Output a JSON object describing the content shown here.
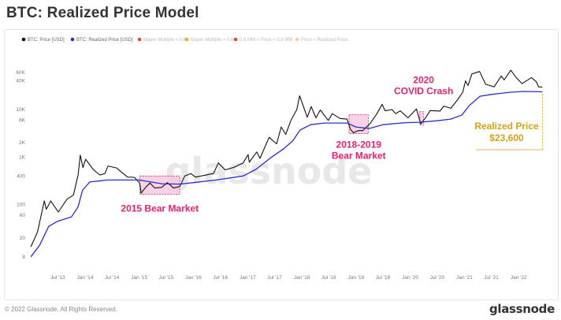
{
  "page": {
    "title": "BTC: Realized Price Model",
    "copyright": "© 2022 Glassnode. All Rights Reserved.",
    "brand": "glassnode",
    "watermark": "glassnode"
  },
  "colors": {
    "price": "#111111",
    "realized": "#2b2bd6",
    "annotation": "#e8206e",
    "realized_label": "#d6a21a",
    "highlight_fill": "#f7c3dc",
    "highlight_stroke": "#e8206e"
  },
  "chart_data": {
    "type": "line",
    "title": "BTC: Realized Price Model",
    "y_scale": "log",
    "y_ticks": [
      {
        "value": 8,
        "label": "8"
      },
      {
        "value": 20,
        "label": "20"
      },
      {
        "value": 60,
        "label": "60"
      },
      {
        "value": 100,
        "label": "100"
      },
      {
        "value": 400,
        "label": "400"
      },
      {
        "value": 1000,
        "label": "1K"
      },
      {
        "value": 2000,
        "label": "2K"
      },
      {
        "value": 6000,
        "label": "6K"
      },
      {
        "value": 10000,
        "label": "10K"
      },
      {
        "value": 40000,
        "label": "40K"
      },
      {
        "value": 60000,
        "label": "60K"
      }
    ],
    "ylim": [
      4,
      150000
    ],
    "xlim": [
      "2012-12-15",
      "2022-07-31"
    ],
    "x_ticks": [
      {
        "date": "2013-07-01",
        "label": "Jul '13"
      },
      {
        "date": "2014-01-01",
        "label": "Jan '14"
      },
      {
        "date": "2014-07-01",
        "label": "Jul '14"
      },
      {
        "date": "2015-01-01",
        "label": "Jan '15"
      },
      {
        "date": "2015-07-01",
        "label": "Jul '15"
      },
      {
        "date": "2016-01-01",
        "label": "Jan '16"
      },
      {
        "date": "2016-07-01",
        "label": "Jul '16"
      },
      {
        "date": "2017-01-01",
        "label": "Jan '17"
      },
      {
        "date": "2017-07-01",
        "label": "Jul '17"
      },
      {
        "date": "2018-01-01",
        "label": "Jan '18"
      },
      {
        "date": "2018-07-01",
        "label": "Jul '18"
      },
      {
        "date": "2019-01-01",
        "label": "Jan '19"
      },
      {
        "date": "2019-07-01",
        "label": "Jul '19"
      },
      {
        "date": "2020-01-01",
        "label": "Jan '20"
      },
      {
        "date": "2020-07-01",
        "label": "Jul '20"
      },
      {
        "date": "2021-01-01",
        "label": "Jan '21"
      },
      {
        "date": "2021-07-01",
        "label": "Jul '21"
      },
      {
        "date": "2022-01-01",
        "label": "Jan '22"
      }
    ],
    "legend": [
      {
        "label": "BTC: Price [USD]",
        "color": "#111111",
        "active": true
      },
      {
        "label": "BTC: Realized Price [USD]",
        "color": "#2b2bd6",
        "active": true
      },
      {
        "label": "Mayer Multiple < 0.6",
        "color": "#e03030",
        "active": false
      },
      {
        "label": "Mayer Multiple > 0.8",
        "color": "#e6a817",
        "active": false
      },
      {
        "label": "0.6 MM < Price < 0.8 MM",
        "color": "#e03030",
        "active": false
      },
      {
        "label": "Price < Realized Price",
        "color": "#f3c98a",
        "active": false
      }
    ],
    "legend_placement": "top-left",
    "series": [
      {
        "name": "BTC: Price [USD]",
        "points": [
          [
            "2013-01-01",
            13
          ],
          [
            "2013-02-15",
            27
          ],
          [
            "2013-04-01",
            120
          ],
          [
            "2013-04-15",
            80
          ],
          [
            "2013-05-15",
            120
          ],
          [
            "2013-07-05",
            70
          ],
          [
            "2013-09-01",
            130
          ],
          [
            "2013-10-15",
            160
          ],
          [
            "2013-11-15",
            420
          ],
          [
            "2013-11-30",
            1100
          ],
          [
            "2013-12-18",
            600
          ],
          [
            "2014-01-05",
            900
          ],
          [
            "2014-02-25",
            550
          ],
          [
            "2014-04-10",
            420
          ],
          [
            "2014-05-15",
            450
          ],
          [
            "2014-06-05",
            650
          ],
          [
            "2014-08-01",
            590
          ],
          [
            "2014-09-15",
            450
          ],
          [
            "2014-10-15",
            380
          ],
          [
            "2014-12-01",
            375
          ],
          [
            "2015-01-05",
            280
          ],
          [
            "2015-01-14",
            175
          ],
          [
            "2015-02-15",
            235
          ],
          [
            "2015-03-15",
            285
          ],
          [
            "2015-04-15",
            225
          ],
          [
            "2015-06-01",
            230
          ],
          [
            "2015-07-10",
            290
          ],
          [
            "2015-08-20",
            225
          ],
          [
            "2015-10-01",
            240
          ],
          [
            "2015-11-04",
            400
          ],
          [
            "2015-12-15",
            450
          ],
          [
            "2016-01-15",
            380
          ],
          [
            "2016-03-15",
            415
          ],
          [
            "2016-05-15",
            450
          ],
          [
            "2016-06-17",
            750
          ],
          [
            "2016-08-02",
            540
          ],
          [
            "2016-10-01",
            610
          ],
          [
            "2016-12-01",
            750
          ],
          [
            "2017-01-04",
            1130
          ],
          [
            "2017-01-12",
            780
          ],
          [
            "2017-03-03",
            1280
          ],
          [
            "2017-03-25",
            940
          ],
          [
            "2017-05-25",
            2600
          ],
          [
            "2017-07-15",
            1900
          ],
          [
            "2017-08-15",
            4300
          ],
          [
            "2017-09-14",
            3000
          ],
          [
            "2017-10-20",
            6000
          ],
          [
            "2017-11-28",
            10000
          ],
          [
            "2017-12-17",
            19500
          ],
          [
            "2018-02-06",
            6900
          ],
          [
            "2018-03-05",
            11500
          ],
          [
            "2018-04-06",
            6700
          ],
          [
            "2018-05-05",
            9800
          ],
          [
            "2018-06-28",
            5900
          ],
          [
            "2018-07-25",
            8200
          ],
          [
            "2018-09-15",
            6500
          ],
          [
            "2018-11-01",
            6300
          ],
          [
            "2018-11-25",
            3800
          ],
          [
            "2018-12-15",
            3250
          ],
          [
            "2019-01-15",
            3600
          ],
          [
            "2019-02-15",
            3600
          ],
          [
            "2019-04-05",
            5000
          ],
          [
            "2019-05-20",
            8000
          ],
          [
            "2019-06-26",
            12900
          ],
          [
            "2019-07-16",
            9400
          ],
          [
            "2019-09-01",
            10000
          ],
          [
            "2019-09-25",
            8200
          ],
          [
            "2019-10-26",
            9400
          ],
          [
            "2019-12-17",
            6700
          ],
          [
            "2020-02-12",
            10300
          ],
          [
            "2020-03-12",
            5000
          ],
          [
            "2020-04-15",
            6800
          ],
          [
            "2020-05-15",
            9500
          ],
          [
            "2020-07-20",
            9300
          ],
          [
            "2020-08-15",
            11800
          ],
          [
            "2020-10-01",
            10600
          ],
          [
            "2020-11-15",
            16000
          ],
          [
            "2020-12-20",
            23000
          ],
          [
            "2021-01-08",
            40000
          ],
          [
            "2021-01-25",
            32000
          ],
          [
            "2021-02-20",
            56000
          ],
          [
            "2021-04-13",
            63000
          ],
          [
            "2021-05-23",
            34000
          ],
          [
            "2021-06-20",
            32000
          ],
          [
            "2021-07-20",
            30000
          ],
          [
            "2021-09-06",
            51000
          ],
          [
            "2021-09-25",
            42000
          ],
          [
            "2021-11-09",
            67000
          ],
          [
            "2021-12-15",
            47000
          ],
          [
            "2022-01-24",
            35000
          ],
          [
            "2022-03-28",
            47000
          ],
          [
            "2022-05-01",
            38000
          ],
          [
            "2022-05-15",
            30000
          ],
          [
            "2022-06-10",
            29500
          ]
        ]
      },
      {
        "name": "BTC: Realized Price [USD]",
        "points": [
          [
            "2013-01-01",
            8
          ],
          [
            "2013-03-01",
            14
          ],
          [
            "2013-05-01",
            35
          ],
          [
            "2013-07-01",
            45
          ],
          [
            "2013-10-01",
            55
          ],
          [
            "2013-11-15",
            90
          ],
          [
            "2013-12-15",
            200
          ],
          [
            "2014-02-01",
            300
          ],
          [
            "2014-06-01",
            330
          ],
          [
            "2015-01-01",
            330
          ],
          [
            "2015-06-01",
            275
          ],
          [
            "2015-10-01",
            270
          ],
          [
            "2016-01-01",
            290
          ],
          [
            "2016-06-01",
            330
          ],
          [
            "2016-12-01",
            400
          ],
          [
            "2017-03-01",
            560
          ],
          [
            "2017-06-01",
            950
          ],
          [
            "2017-09-01",
            1500
          ],
          [
            "2017-11-01",
            2200
          ],
          [
            "2017-12-20",
            3700
          ],
          [
            "2018-03-01",
            4800
          ],
          [
            "2018-06-01",
            5200
          ],
          [
            "2018-11-01",
            5200
          ],
          [
            "2019-01-01",
            4300
          ],
          [
            "2019-04-01",
            4000
          ],
          [
            "2019-07-01",
            4800
          ],
          [
            "2019-12-01",
            5300
          ],
          [
            "2020-03-01",
            5400
          ],
          [
            "2020-07-01",
            5800
          ],
          [
            "2020-10-01",
            6300
          ],
          [
            "2020-12-15",
            7700
          ],
          [
            "2021-02-01",
            12000
          ],
          [
            "2021-04-15",
            19000
          ],
          [
            "2021-07-01",
            20800
          ],
          [
            "2021-11-01",
            23000
          ],
          [
            "2022-02-01",
            24000
          ],
          [
            "2022-06-10",
            23600
          ]
        ]
      }
    ],
    "annotations": {
      "bear_2015": {
        "label": "2015 Bear Market",
        "start": "2015-01-05",
        "end": "2015-10-01",
        "low": 165,
        "high": 400
      },
      "bear_2018": {
        "label_line1": "2018-2019",
        "label_line2": "Bear Market",
        "start": "2018-11-15",
        "end": "2019-03-25",
        "low": 3100,
        "high": 7800
      },
      "covid": {
        "label_line1": "2020",
        "label_line2": "COVID Crash",
        "start": "2020-03-05",
        "end": "2020-04-01",
        "low": 4800,
        "high": 9000
      },
      "realized_label": {
        "line1": "Realized Price",
        "line2": "$23,600"
      }
    }
  }
}
